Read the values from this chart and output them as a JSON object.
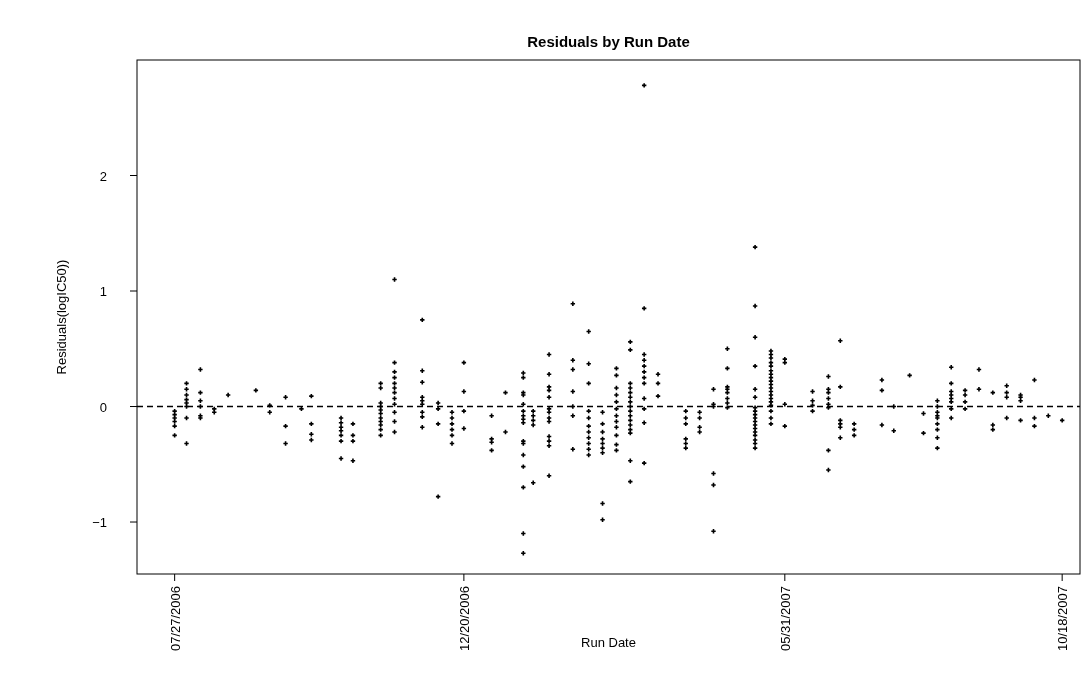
{
  "chart_data": {
    "type": "scatter",
    "title": "Residuals by Run Date",
    "xlabel": "Run Date",
    "ylabel": "Residuals(logIC50))",
    "marker": "cross",
    "grid": false,
    "xlim": [
      "2006-07-08",
      "2007-10-27"
    ],
    "xticks": [
      {
        "value": "2006-07-27",
        "label": "07/27/2006"
      },
      {
        "value": "2006-12-20",
        "label": "12/20/2006"
      },
      {
        "value": "2007-05-31",
        "label": "05/31/2007"
      },
      {
        "value": "2007-10-18",
        "label": "10/18/2007"
      }
    ],
    "ylim": [
      -1.45,
      3.0
    ],
    "yticks": [
      {
        "value": -1,
        "label": "−1"
      },
      0,
      1,
      2
    ],
    "ref_lines": [
      {
        "axis": "y",
        "value": 0,
        "line_style": "dashed",
        "color": "#000000"
      }
    ],
    "series": [
      {
        "color": "#000000",
        "x": [
          "2006-07-27",
          "2006-07-27",
          "2006-07-27",
          "2006-07-27",
          "2006-07-27",
          "2006-07-27",
          "2006-08-02",
          "2006-08-02",
          "2006-08-02",
          "2006-08-02",
          "2006-08-02",
          "2006-08-02",
          "2006-08-02",
          "2006-08-02",
          "2006-08-09",
          "2006-08-09",
          "2006-08-09",
          "2006-08-09",
          "2006-08-09",
          "2006-08-09",
          "2006-08-16",
          "2006-08-16",
          "2006-08-23",
          "2006-09-06",
          "2006-09-13",
          "2006-09-13",
          "2006-09-21",
          "2006-09-21",
          "2006-09-21",
          "2006-09-29",
          "2006-10-04",
          "2006-10-04",
          "2006-10-04",
          "2006-10-04",
          "2006-10-19",
          "2006-10-19",
          "2006-10-19",
          "2006-10-19",
          "2006-10-19",
          "2006-10-19",
          "2006-10-19",
          "2006-10-25",
          "2006-10-25",
          "2006-10-25",
          "2006-10-25",
          "2006-11-08",
          "2006-11-08",
          "2006-11-08",
          "2006-11-08",
          "2006-11-08",
          "2006-11-08",
          "2006-11-08",
          "2006-11-08",
          "2006-11-08",
          "2006-11-08",
          "2006-11-08",
          "2006-11-15",
          "2006-11-15",
          "2006-11-15",
          "2006-11-15",
          "2006-11-15",
          "2006-11-15",
          "2006-11-15",
          "2006-11-15",
          "2006-11-15",
          "2006-11-15",
          "2006-11-15",
          "2006-11-15",
          "2006-11-29",
          "2006-11-29",
          "2006-11-29",
          "2006-11-29",
          "2006-11-29",
          "2006-11-29",
          "2006-11-29",
          "2006-11-29",
          "2006-11-29",
          "2006-12-07",
          "2006-12-07",
          "2006-12-07",
          "2006-12-07",
          "2006-12-14",
          "2006-12-14",
          "2006-12-14",
          "2006-12-14",
          "2006-12-14",
          "2006-12-14",
          "2006-12-20",
          "2006-12-20",
          "2006-12-20",
          "2006-12-20",
          "2007-01-03",
          "2007-01-03",
          "2007-01-03",
          "2007-01-03",
          "2007-01-10",
          "2007-01-10",
          "2007-01-19",
          "2007-01-19",
          "2007-01-19",
          "2007-01-19",
          "2007-01-19",
          "2007-01-19",
          "2007-01-19",
          "2007-01-19",
          "2007-01-19",
          "2007-01-19",
          "2007-01-19",
          "2007-01-19",
          "2007-01-19",
          "2007-01-19",
          "2007-01-19",
          "2007-01-19",
          "2007-01-24",
          "2007-01-24",
          "2007-01-24",
          "2007-01-24",
          "2007-01-24",
          "2007-02-01",
          "2007-02-01",
          "2007-02-01",
          "2007-02-01",
          "2007-02-01",
          "2007-02-01",
          "2007-02-01",
          "2007-02-01",
          "2007-02-01",
          "2007-02-01",
          "2007-02-01",
          "2007-02-01",
          "2007-02-01",
          "2007-02-13",
          "2007-02-13",
          "2007-02-13",
          "2007-02-13",
          "2007-02-13",
          "2007-02-13",
          "2007-02-13",
          "2007-02-21",
          "2007-02-21",
          "2007-02-21",
          "2007-02-21",
          "2007-02-21",
          "2007-02-21",
          "2007-02-21",
          "2007-02-21",
          "2007-02-21",
          "2007-02-21",
          "2007-02-21",
          "2007-02-28",
          "2007-02-28",
          "2007-02-28",
          "2007-02-28",
          "2007-02-28",
          "2007-02-28",
          "2007-02-28",
          "2007-02-28",
          "2007-02-28",
          "2007-03-07",
          "2007-03-07",
          "2007-03-07",
          "2007-03-07",
          "2007-03-07",
          "2007-03-07",
          "2007-03-07",
          "2007-03-07",
          "2007-03-07",
          "2007-03-07",
          "2007-03-07",
          "2007-03-07",
          "2007-03-14",
          "2007-03-14",
          "2007-03-14",
          "2007-03-14",
          "2007-03-14",
          "2007-03-14",
          "2007-03-14",
          "2007-03-14",
          "2007-03-14",
          "2007-03-14",
          "2007-03-14",
          "2007-03-14",
          "2007-03-14",
          "2007-03-14",
          "2007-03-14",
          "2007-03-14",
          "2007-03-21",
          "2007-03-21",
          "2007-03-21",
          "2007-03-21",
          "2007-03-21",
          "2007-03-21",
          "2007-03-21",
          "2007-03-21",
          "2007-03-21",
          "2007-03-21",
          "2007-03-21",
          "2007-03-21",
          "2007-03-28",
          "2007-03-28",
          "2007-03-28",
          "2007-04-11",
          "2007-04-11",
          "2007-04-11",
          "2007-04-11",
          "2007-04-11",
          "2007-04-11",
          "2007-04-18",
          "2007-04-18",
          "2007-04-18",
          "2007-04-18",
          "2007-04-25",
          "2007-04-25",
          "2007-04-25",
          "2007-04-25",
          "2007-04-25",
          "2007-04-25",
          "2007-05-02",
          "2007-05-02",
          "2007-05-02",
          "2007-05-02",
          "2007-05-02",
          "2007-05-02",
          "2007-05-02",
          "2007-05-02",
          "2007-05-16",
          "2007-05-16",
          "2007-05-16",
          "2007-05-16",
          "2007-05-16",
          "2007-05-16",
          "2007-05-16",
          "2007-05-16",
          "2007-05-16",
          "2007-05-16",
          "2007-05-16",
          "2007-05-16",
          "2007-05-16",
          "2007-05-16",
          "2007-05-16",
          "2007-05-16",
          "2007-05-16",
          "2007-05-16",
          "2007-05-24",
          "2007-05-24",
          "2007-05-24",
          "2007-05-24",
          "2007-05-24",
          "2007-05-24",
          "2007-05-24",
          "2007-05-24",
          "2007-05-24",
          "2007-05-24",
          "2007-05-24",
          "2007-05-24",
          "2007-05-24",
          "2007-05-24",
          "2007-05-24",
          "2007-05-24",
          "2007-05-24",
          "2007-05-24",
          "2007-05-24",
          "2007-05-31",
          "2007-05-31",
          "2007-05-31",
          "2007-05-31",
          "2007-06-14",
          "2007-06-14",
          "2007-06-14",
          "2007-06-14",
          "2007-06-22",
          "2007-06-22",
          "2007-06-22",
          "2007-06-22",
          "2007-06-22",
          "2007-06-22",
          "2007-06-22",
          "2007-06-22",
          "2007-06-28",
          "2007-06-28",
          "2007-06-28",
          "2007-06-28",
          "2007-06-28",
          "2007-06-28",
          "2007-07-05",
          "2007-07-05",
          "2007-07-05",
          "2007-07-19",
          "2007-07-19",
          "2007-07-19",
          "2007-07-25",
          "2007-07-25",
          "2007-08-02",
          "2007-08-09",
          "2007-08-09",
          "2007-08-16",
          "2007-08-16",
          "2007-08-16",
          "2007-08-16",
          "2007-08-16",
          "2007-08-16",
          "2007-08-16",
          "2007-08-16",
          "2007-08-16",
          "2007-08-23",
          "2007-08-23",
          "2007-08-23",
          "2007-08-23",
          "2007-08-23",
          "2007-08-23",
          "2007-08-23",
          "2007-08-23",
          "2007-08-30",
          "2007-08-30",
          "2007-08-30",
          "2007-08-30",
          "2007-09-06",
          "2007-09-06",
          "2007-09-13",
          "2007-09-13",
          "2007-09-13",
          "2007-09-20",
          "2007-09-20",
          "2007-09-20",
          "2007-09-20",
          "2007-09-27",
          "2007-09-27",
          "2007-09-27",
          "2007-09-27",
          "2007-10-04",
          "2007-10-04",
          "2007-10-04",
          "2007-10-11",
          "2007-10-18"
        ],
        "values": [
          -0.04,
          -0.07,
          -0.1,
          -0.13,
          -0.17,
          -0.25,
          0.2,
          0.15,
          0.1,
          0.06,
          0.03,
          0,
          -0.1,
          -0.32,
          0.32,
          0.12,
          0.05,
          0,
          -0.08,
          -0.1,
          -0.02,
          -0.05,
          0.1,
          0.14,
          0.01,
          -0.05,
          0.08,
          -0.17,
          -0.32,
          -0.02,
          0.09,
          -0.15,
          -0.24,
          -0.29,
          -0.1,
          -0.14,
          -0.18,
          -0.21,
          -0.25,
          -0.3,
          -0.45,
          -0.15,
          -0.25,
          -0.3,
          -0.47,
          0.2,
          0.16,
          0.03,
          0,
          -0.03,
          -0.06,
          -0.1,
          -0.13,
          -0.16,
          -0.2,
          -0.25,
          1.1,
          0.38,
          0.3,
          0.25,
          0.2,
          0.16,
          0.12,
          0.07,
          0.02,
          -0.05,
          -0.13,
          -0.22,
          0.75,
          0.31,
          0.21,
          0.08,
          0.05,
          0.02,
          -0.05,
          -0.09,
          -0.18,
          0.03,
          -0.02,
          -0.15,
          -0.78,
          -0.05,
          -0.1,
          -0.15,
          -0.2,
          -0.25,
          -0.32,
          0.38,
          0.13,
          -0.04,
          -0.19,
          -0.08,
          -0.28,
          -0.31,
          -0.38,
          0.12,
          -0.22,
          0.29,
          0.25,
          0.12,
          0.1,
          0.02,
          -0.04,
          -0.08,
          -0.11,
          -0.14,
          -0.3,
          -0.32,
          -0.42,
          -0.52,
          -0.7,
          -1.1,
          -1.27,
          -0.04,
          -0.08,
          -0.12,
          -0.16,
          -0.66,
          0.45,
          0.28,
          0.17,
          0.14,
          0.08,
          -0.02,
          -0.05,
          -0.1,
          -0.13,
          -0.26,
          -0.3,
          -0.34,
          -0.6,
          0.89,
          0.4,
          0.32,
          0.13,
          0,
          -0.08,
          -0.37,
          0.65,
          0.37,
          0.2,
          -0.04,
          -0.1,
          -0.17,
          -0.22,
          -0.27,
          -0.32,
          -0.37,
          -0.42,
          -0.05,
          -0.15,
          -0.22,
          -0.28,
          -0.32,
          -0.36,
          -0.4,
          -0.84,
          -0.98,
          0.33,
          0.27,
          0.16,
          0.1,
          0.04,
          -0.02,
          -0.08,
          -0.13,
          -0.18,
          -0.25,
          -0.33,
          -0.38,
          0.56,
          0.49,
          0.2,
          0.16,
          0.12,
          0.08,
          0.04,
          0,
          -0.04,
          -0.08,
          -0.12,
          -0.16,
          -0.2,
          -0.23,
          -0.47,
          -0.65,
          2.78,
          0.85,
          0.45,
          0.4,
          0.35,
          0.3,
          0.25,
          0.2,
          0.07,
          -0.02,
          -0.14,
          -0.49,
          0.28,
          0.2,
          0.09,
          -0.04,
          -0.1,
          -0.15,
          -0.28,
          -0.32,
          -0.36,
          -0.05,
          -0.1,
          -0.18,
          -0.22,
          0.15,
          0.02,
          0,
          -0.58,
          -0.68,
          -1.08,
          0.5,
          0.33,
          0.17,
          0.15,
          0.12,
          0.07,
          0.03,
          -0.01,
          1.38,
          0.87,
          0.6,
          0.35,
          0.15,
          0.08,
          -0.01,
          -0.04,
          -0.07,
          -0.1,
          -0.13,
          -0.16,
          -0.19,
          -0.22,
          -0.25,
          -0.29,
          -0.32,
          -0.36,
          0.48,
          0.45,
          0.42,
          0.38,
          0.35,
          0.31,
          0.28,
          0.25,
          0.22,
          0.19,
          0.16,
          0.13,
          0.1,
          0.07,
          0.04,
          0.01,
          -0.04,
          -0.1,
          -0.15,
          0.41,
          0.38,
          0.02,
          -0.17,
          0.13,
          0.05,
          0.01,
          -0.04,
          0.26,
          0.15,
          0.12,
          0.07,
          0.02,
          -0.01,
          -0.38,
          -0.55,
          0.57,
          0.17,
          -0.12,
          -0.15,
          -0.18,
          -0.27,
          -0.15,
          -0.2,
          -0.25,
          0.23,
          0.14,
          -0.16,
          0,
          -0.21,
          0.27,
          -0.06,
          -0.23,
          0.05,
          0,
          -0.05,
          -0.08,
          -0.1,
          -0.15,
          -0.2,
          -0.27,
          -0.36,
          0.34,
          0.2,
          0.13,
          0.1,
          0.07,
          0.04,
          -0.02,
          -0.1,
          0.14,
          0.1,
          0.04,
          -0.02,
          0.32,
          0.15,
          0.12,
          -0.16,
          -0.2,
          0.18,
          0.12,
          0.08,
          -0.1,
          0.1,
          0.08,
          0.05,
          -0.12,
          0.23,
          -0.1,
          -0.17,
          -0.08,
          -0.12
        ]
      }
    ]
  }
}
